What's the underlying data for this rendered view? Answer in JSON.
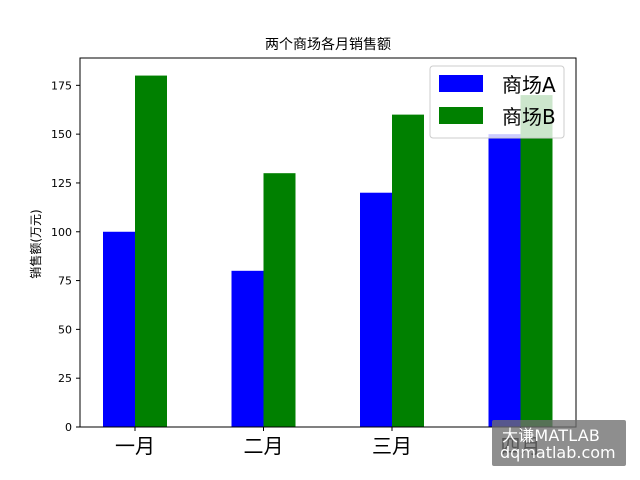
{
  "chart_data": {
    "type": "bar",
    "title": "两个商场各月销售额",
    "xlabel": "",
    "ylabel": "销售额(万元)",
    "categories": [
      "一月",
      "二月",
      "三月",
      "四月"
    ],
    "series": [
      {
        "name": "商场A",
        "values": [
          100,
          80,
          120,
          150
        ],
        "color": "#0000ff"
      },
      {
        "name": "商场B",
        "values": [
          180,
          130,
          160,
          170
        ],
        "color": "#008000"
      }
    ],
    "ylim": [
      0,
      189
    ],
    "yticks": [
      0,
      25,
      50,
      75,
      100,
      125,
      150,
      175
    ],
    "grid": false,
    "legend_position": "top-right"
  },
  "watermark": {
    "line1": "大谦MATLAB",
    "line2": "dqmatlab.com"
  }
}
